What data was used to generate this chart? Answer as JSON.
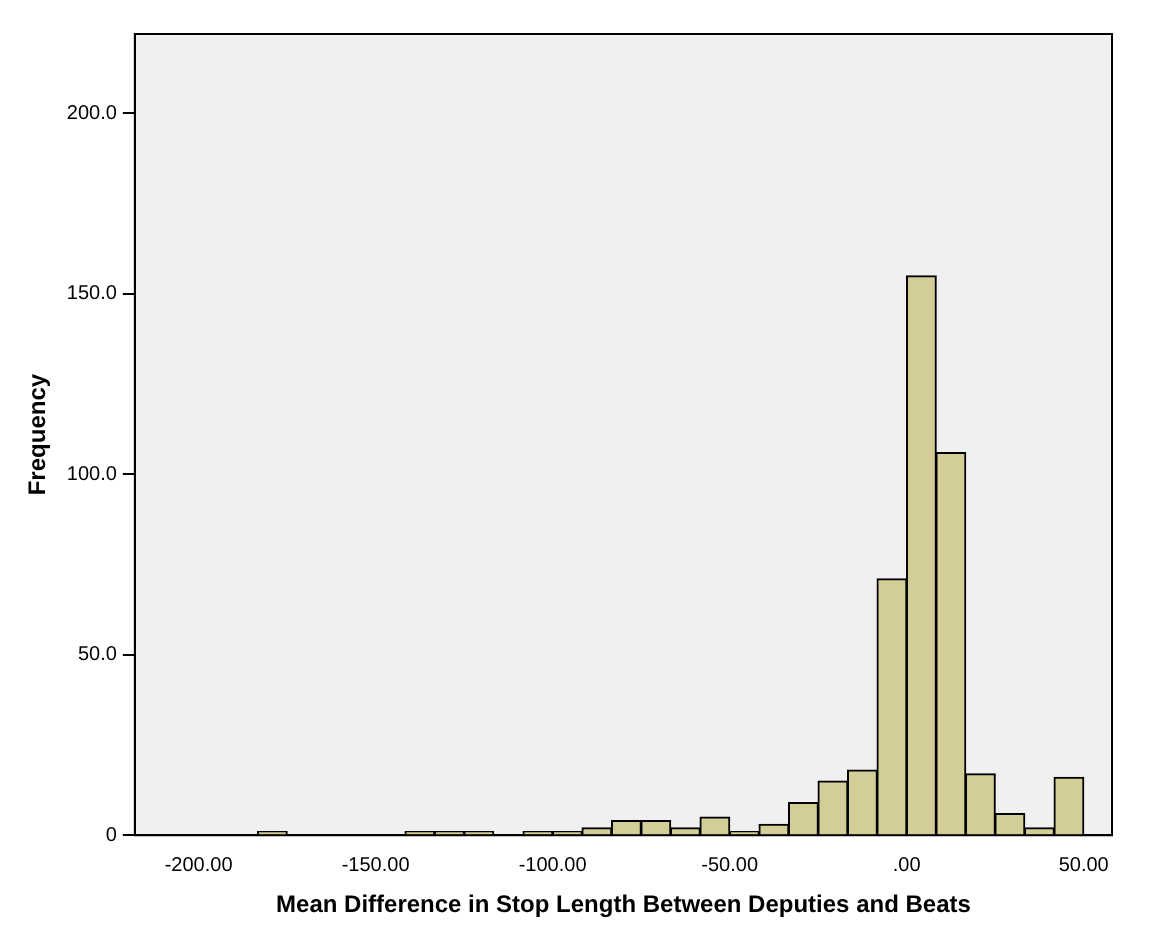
{
  "chart_data": {
    "type": "histogram",
    "xlabel": "Mean Difference in Stop Length Between Deputies and Beats",
    "ylabel": "Frequency",
    "bins": [
      -183.33,
      -175,
      -166.67,
      -158.33,
      -150,
      -141.67,
      -133.33,
      -125,
      -116.67,
      -108.33,
      -100,
      -91.67,
      -83.33,
      -75,
      -66.67,
      -58.33,
      -50,
      -41.67,
      -33.33,
      -25,
      -16.67,
      -8.33,
      0,
      8.33,
      16.67,
      25,
      33.33,
      41.67,
      50
    ],
    "values": [
      1,
      0,
      0,
      0,
      0,
      1,
      1,
      1,
      0,
      1,
      1,
      2,
      4,
      4,
      2,
      5,
      1,
      3,
      9,
      15,
      18,
      71,
      155,
      106,
      17,
      6,
      2,
      16
    ],
    "color": "#d3ce97",
    "xlim": [
      -218,
      58
    ],
    "xticks": [
      {
        "value": -200,
        "label": "-200.00"
      },
      {
        "value": -150,
        "label": "-150.00"
      },
      {
        "value": -100,
        "label": "-100.00"
      },
      {
        "value": -50,
        "label": "-50.00"
      },
      {
        "value": 0,
        "label": ".00"
      },
      {
        "value": 50,
        "label": "50.00"
      }
    ],
    "ylim": [
      0,
      222
    ],
    "yticks": [
      0,
      {
        "value": 50,
        "label": "50.0"
      },
      {
        "value": 100,
        "label": "100.0"
      },
      {
        "value": 150,
        "label": "150.0"
      },
      {
        "value": 200,
        "label": "200.0"
      }
    ],
    "grid": false,
    "legend": false
  }
}
